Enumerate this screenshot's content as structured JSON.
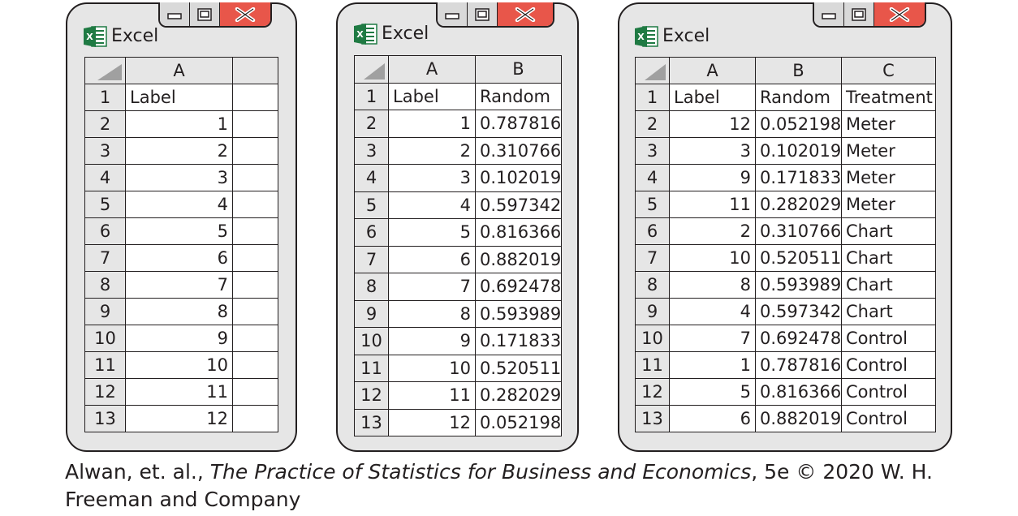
{
  "windows": [
    {
      "app_name": "Excel",
      "icon": "excel-icon",
      "controls": [
        "minimize-icon",
        "maximize-icon",
        "close-icon"
      ],
      "columns": [
        "A",
        ""
      ],
      "rows": [
        {
          "n": "1",
          "cells": [
            "Label",
            ""
          ]
        },
        {
          "n": "2",
          "cells": [
            "1",
            ""
          ]
        },
        {
          "n": "3",
          "cells": [
            "2",
            ""
          ]
        },
        {
          "n": "4",
          "cells": [
            "3",
            ""
          ]
        },
        {
          "n": "5",
          "cells": [
            "4",
            ""
          ]
        },
        {
          "n": "6",
          "cells": [
            "5",
            ""
          ]
        },
        {
          "n": "7",
          "cells": [
            "6",
            ""
          ]
        },
        {
          "n": "8",
          "cells": [
            "7",
            ""
          ]
        },
        {
          "n": "9",
          "cells": [
            "8",
            ""
          ]
        },
        {
          "n": "10",
          "cells": [
            "9",
            ""
          ]
        },
        {
          "n": "11",
          "cells": [
            "10",
            ""
          ]
        },
        {
          "n": "12",
          "cells": [
            "11",
            ""
          ]
        },
        {
          "n": "13",
          "cells": [
            "12",
            ""
          ]
        }
      ]
    },
    {
      "app_name": "Excel",
      "icon": "excel-icon",
      "controls": [
        "minimize-icon",
        "maximize-icon",
        "close-icon"
      ],
      "columns": [
        "A",
        "B"
      ],
      "rows": [
        {
          "n": "1",
          "cells": [
            "Label",
            "Random"
          ]
        },
        {
          "n": "2",
          "cells": [
            "1",
            "0.787816"
          ]
        },
        {
          "n": "3",
          "cells": [
            "2",
            "0.310766"
          ]
        },
        {
          "n": "4",
          "cells": [
            "3",
            "0.102019"
          ]
        },
        {
          "n": "5",
          "cells": [
            "4",
            "0.597342"
          ]
        },
        {
          "n": "6",
          "cells": [
            "5",
            "0.816366"
          ]
        },
        {
          "n": "7",
          "cells": [
            "6",
            "0.882019"
          ]
        },
        {
          "n": "8",
          "cells": [
            "7",
            "0.692478"
          ]
        },
        {
          "n": "9",
          "cells": [
            "8",
            "0.593989"
          ]
        },
        {
          "n": "10",
          "cells": [
            "9",
            "0.171833"
          ]
        },
        {
          "n": "11",
          "cells": [
            "10",
            "0.520511"
          ]
        },
        {
          "n": "12",
          "cells": [
            "11",
            "0.282029"
          ]
        },
        {
          "n": "13",
          "cells": [
            "12",
            "0.052198"
          ]
        }
      ]
    },
    {
      "app_name": "Excel",
      "icon": "excel-icon",
      "controls": [
        "minimize-icon",
        "maximize-icon",
        "close-icon"
      ],
      "columns": [
        "A",
        "B",
        "C"
      ],
      "rows": [
        {
          "n": "1",
          "cells": [
            "Label",
            "Random",
            "Treatment"
          ]
        },
        {
          "n": "2",
          "cells": [
            "12",
            "0.052198",
            "Meter"
          ]
        },
        {
          "n": "3",
          "cells": [
            "3",
            "0.102019",
            "Meter"
          ]
        },
        {
          "n": "4",
          "cells": [
            "9",
            "0.171833",
            "Meter"
          ]
        },
        {
          "n": "5",
          "cells": [
            "11",
            "0.282029",
            "Meter"
          ]
        },
        {
          "n": "6",
          "cells": [
            "2",
            "0.310766",
            "Chart"
          ]
        },
        {
          "n": "7",
          "cells": [
            "10",
            "0.520511",
            "Chart"
          ]
        },
        {
          "n": "8",
          "cells": [
            "8",
            "0.593989",
            "Chart"
          ]
        },
        {
          "n": "9",
          "cells": [
            "4",
            "0.597342",
            "Chart"
          ]
        },
        {
          "n": "10",
          "cells": [
            "7",
            "0.692478",
            "Control"
          ]
        },
        {
          "n": "11",
          "cells": [
            "1",
            "0.787816",
            "Control"
          ]
        },
        {
          "n": "12",
          "cells": [
            "5",
            "0.816366",
            "Control"
          ]
        },
        {
          "n": "13",
          "cells": [
            "6",
            "0.882019",
            "Control"
          ]
        }
      ]
    }
  ],
  "caption": {
    "prefix": "Alwan, et. al., ",
    "title": "The Practice of Statistics for Business and Economics",
    "suffix": ", 5e © 2020 W. H. Freeman and Company"
  },
  "colors": {
    "window_bg": "#e6e6e6",
    "close_button": "#e8564a",
    "excel_green": "#1f7a43",
    "border": "#231f20"
  }
}
